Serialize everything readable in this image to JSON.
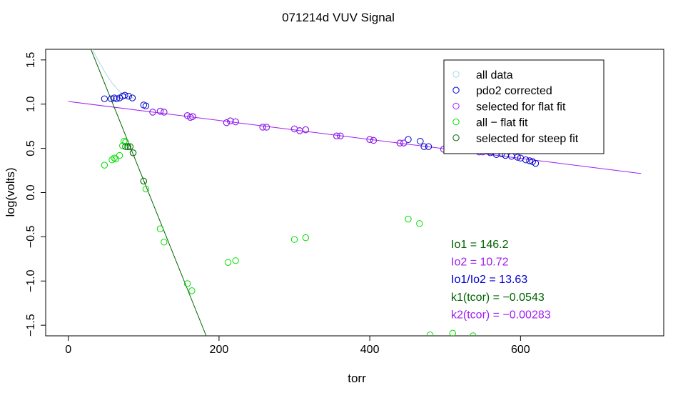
{
  "chart_data": {
    "type": "scatter",
    "title": "071214d   VUV Signal",
    "xlabel": "torr",
    "ylabel": "log(volts)",
    "xlim": [
      -30,
      790
    ],
    "ylim": [
      -1.62,
      1.62
    ],
    "x_ticks": [
      0,
      200,
      400,
      600
    ],
    "y_ticks": [
      -1.5,
      -1.0,
      -0.5,
      0.0,
      0.5,
      1.0,
      1.5
    ],
    "y_tick_labels": [
      "−1.5",
      "−1.0",
      "−0.5",
      "0.0",
      "0.5",
      "1.0",
      "1.5"
    ],
    "grid": false,
    "legend_position": "top-right",
    "legend": [
      {
        "label": "all data",
        "color": "#add8e6"
      },
      {
        "label": "pdo2 corrected",
        "color": "#0000cd"
      },
      {
        "label": "selected for flat fit",
        "color": "#a020f0"
      },
      {
        "label": "all − flat fit",
        "color": "#00dd00"
      },
      {
        "label": "selected for steep fit",
        "color": "#006400"
      }
    ],
    "annotations": [
      {
        "text": "Io1 =  146.2",
        "color": "#006400"
      },
      {
        "text": "Io2 =  10.72",
        "color": "#a020f0"
      },
      {
        "text": "Io1/Io2 =  13.63",
        "color": "#0000cd"
      },
      {
        "text": "k1(tcor) =  −0.0543",
        "color": "#006400"
      },
      {
        "text": "k2(tcor) =  −0.00283",
        "color": "#a020f0"
      }
    ],
    "series": [
      {
        "name": "all data",
        "color": "#add8e6",
        "kind": "line",
        "x": [
          32,
          35,
          38,
          42,
          46,
          50,
          54,
          58,
          62,
          66,
          70,
          74,
          78,
          82,
          86,
          90
        ],
        "y": [
          1.62,
          1.57,
          1.52,
          1.46,
          1.4,
          1.34,
          1.29,
          1.24,
          1.2,
          1.16,
          1.13,
          1.11,
          1.09,
          1.08,
          1.07,
          1.06
        ]
      },
      {
        "name": "pdo2 corrected",
        "color": "#0000cd",
        "kind": "points",
        "x": [
          48,
          57,
          61,
          64,
          68,
          72,
          75,
          80,
          85,
          100,
          103,
          112,
          122,
          127,
          158,
          162,
          165,
          210,
          215,
          222,
          258,
          263,
          300,
          307,
          315,
          356,
          361,
          400,
          405,
          440,
          445,
          451,
          467,
          472,
          478,
          498,
          503,
          545,
          550,
          560,
          568,
          575,
          580,
          588,
          596,
          600,
          607,
          612,
          616,
          620
        ],
        "y": [
          1.06,
          1.06,
          1.07,
          1.06,
          1.07,
          1.09,
          1.1,
          1.09,
          1.07,
          0.99,
          0.98,
          0.91,
          0.92,
          0.91,
          0.87,
          0.85,
          0.86,
          0.79,
          0.81,
          0.8,
          0.74,
          0.74,
          0.72,
          0.7,
          0.71,
          0.64,
          0.64,
          0.6,
          0.59,
          0.56,
          0.56,
          0.6,
          0.58,
          0.52,
          0.52,
          0.49,
          0.49,
          0.46,
          0.46,
          0.45,
          0.43,
          0.44,
          0.42,
          0.41,
          0.4,
          0.39,
          0.37,
          0.36,
          0.35,
          0.33
        ]
      },
      {
        "name": "selected for flat fit",
        "color": "#a020f0",
        "kind": "points",
        "x": [
          112,
          122,
          127,
          158,
          162,
          165,
          210,
          215,
          222,
          258,
          263,
          300,
          307,
          315,
          356,
          361,
          400,
          405,
          440,
          445,
          498,
          503,
          545,
          550
        ],
        "y": [
          0.91,
          0.92,
          0.91,
          0.87,
          0.85,
          0.86,
          0.79,
          0.81,
          0.8,
          0.74,
          0.74,
          0.72,
          0.7,
          0.71,
          0.64,
          0.64,
          0.6,
          0.59,
          0.56,
          0.56,
          0.49,
          0.49,
          0.46,
          0.46
        ]
      },
      {
        "name": "all − flat fit",
        "color": "#00dd00",
        "kind": "points",
        "x": [
          48,
          58,
          61,
          63,
          68,
          72,
          74,
          76,
          79,
          86,
          100,
          103,
          122,
          127,
          158,
          164,
          212,
          222,
          300,
          315,
          451,
          466,
          480,
          510,
          537
        ],
        "y": [
          0.31,
          0.37,
          0.39,
          0.38,
          0.42,
          0.53,
          0.58,
          0.57,
          0.52,
          0.45,
          0.13,
          0.04,
          -0.41,
          -0.56,
          -1.03,
          -1.11,
          -0.79,
          -0.77,
          -0.53,
          -0.51,
          -0.3,
          -0.35,
          -1.61,
          -1.59,
          -1.62
        ]
      },
      {
        "name": "selected for steep fit",
        "color": "#006400",
        "kind": "points",
        "x": [
          76,
          79,
          82,
          86,
          100
        ],
        "y": [
          0.52,
          0.52,
          0.52,
          0.45,
          0.13
        ]
      },
      {
        "name": "flat fit",
        "color": "#a020f0",
        "kind": "line",
        "x": [
          0,
          760
        ],
        "y": [
          1.03,
          0.215
        ]
      },
      {
        "name": "steep fit",
        "color": "#006400",
        "kind": "line",
        "x": [
          30,
          183
        ],
        "y": [
          1.62,
          -1.62
        ]
      }
    ]
  }
}
